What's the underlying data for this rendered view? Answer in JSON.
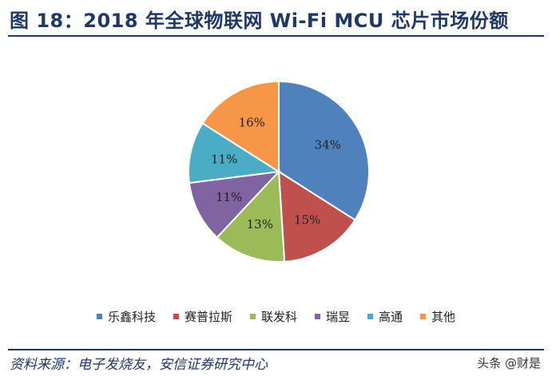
{
  "header": {
    "title": "图 18：2018 年全球物联网 Wi-Fi MCU 芯片市场份额"
  },
  "chart_data": {
    "type": "pie",
    "title": "",
    "series": [
      {
        "label": "乐鑫科技",
        "value": 34,
        "value_label": "34%",
        "color": "#4f81bd"
      },
      {
        "label": "赛普拉斯",
        "value": 15,
        "value_label": "15%",
        "color": "#c0504d"
      },
      {
        "label": "联发科",
        "value": 13,
        "value_label": "13%",
        "color": "#9bbb59"
      },
      {
        "label": "瑞昱",
        "value": 11,
        "value_label": "11%",
        "color": "#8064a2"
      },
      {
        "label": "高通",
        "value": 11,
        "value_label": "11%",
        "color": "#4bacc6"
      },
      {
        "label": "其他",
        "value": 16,
        "value_label": "16%",
        "color": "#f79646"
      }
    ],
    "legend_position": "bottom",
    "start": "12 o'clock, clockwise"
  },
  "footer": {
    "source": "资料来源：电子发烧友，安信证券研究中心",
    "watermark": "头条 @财是"
  }
}
